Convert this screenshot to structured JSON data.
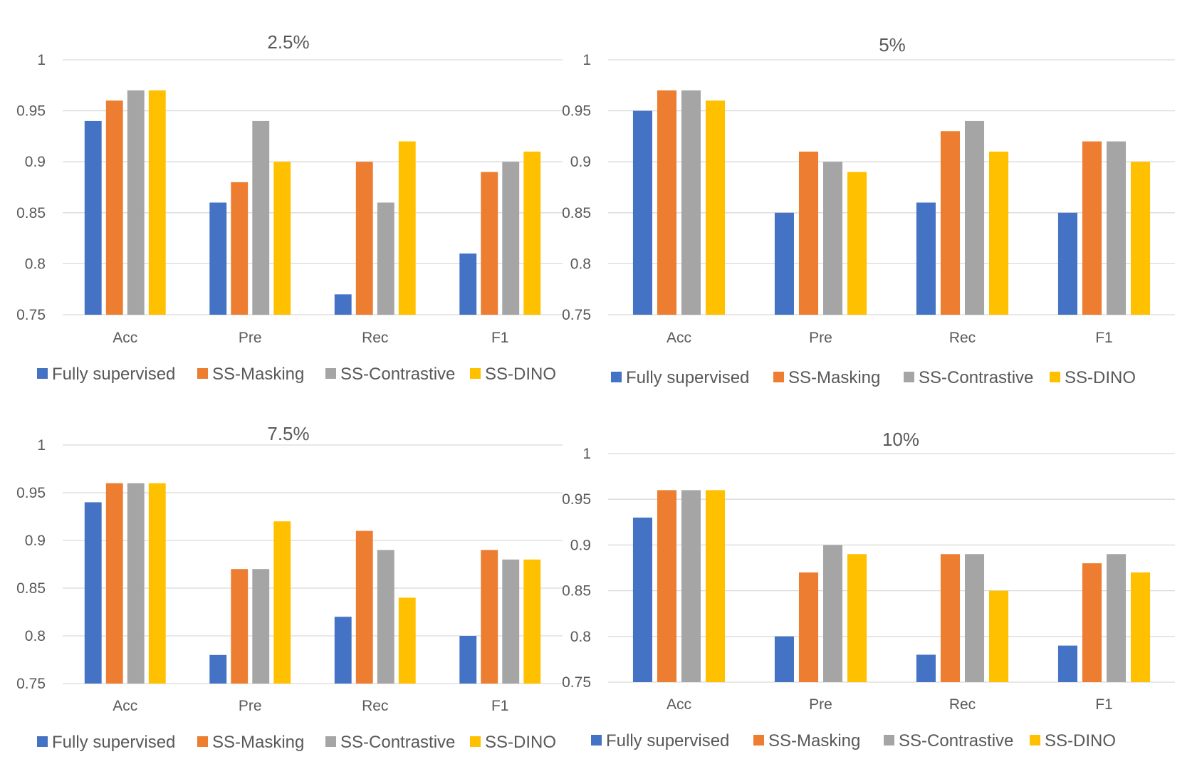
{
  "chart_data": [
    {
      "type": "bar",
      "title": "2.5%",
      "categories": [
        "Acc",
        "Pre",
        "Rec",
        "F1"
      ],
      "ylim": [
        0.75,
        1
      ],
      "yticks": [
        "0.75",
        "0.8",
        "0.85",
        "0.9",
        "0.95",
        "1"
      ],
      "ytick_values": [
        0.75,
        0.8,
        0.85,
        0.9,
        0.95,
        1
      ],
      "grid": true,
      "legend": "bottom",
      "series": [
        {
          "name": "Fully supervised",
          "color": "#4472c4",
          "values": [
            0.94,
            0.86,
            0.77,
            0.81
          ]
        },
        {
          "name": "SS-Masking",
          "color": "#ed7d31",
          "values": [
            0.96,
            0.88,
            0.9,
            0.89
          ]
        },
        {
          "name": "SS-Contrastive",
          "color": "#a5a5a5",
          "values": [
            0.97,
            0.94,
            0.86,
            0.9
          ]
        },
        {
          "name": "SS-DINO",
          "color": "#ffc000",
          "values": [
            0.97,
            0.9,
            0.92,
            0.91
          ]
        }
      ]
    },
    {
      "type": "bar",
      "title": "5%",
      "categories": [
        "Acc",
        "Pre",
        "Rec",
        "F1"
      ],
      "ylim": [
        0.75,
        1
      ],
      "yticks": [
        "0.75",
        "0.8",
        "0.85",
        "0.9",
        "0.95",
        "1"
      ],
      "ytick_values": [
        0.75,
        0.8,
        0.85,
        0.9,
        0.95,
        1
      ],
      "grid": true,
      "legend": "bottom",
      "series": [
        {
          "name": "Fully supervised",
          "color": "#4472c4",
          "values": [
            0.95,
            0.85,
            0.86,
            0.85
          ]
        },
        {
          "name": "SS-Masking",
          "color": "#ed7d31",
          "values": [
            0.97,
            0.91,
            0.93,
            0.92
          ]
        },
        {
          "name": "SS-Contrastive",
          "color": "#a5a5a5",
          "values": [
            0.97,
            0.9,
            0.94,
            0.92
          ]
        },
        {
          "name": "SS-DINO",
          "color": "#ffc000",
          "values": [
            0.96,
            0.89,
            0.91,
            0.9
          ]
        }
      ]
    },
    {
      "type": "bar",
      "title": "7.5%",
      "categories": [
        "Acc",
        "Pre",
        "Rec",
        "F1"
      ],
      "ylim": [
        0.75,
        1
      ],
      "yticks": [
        "0.75",
        "0.8",
        "0.85",
        "0.9",
        "0.95",
        "1"
      ],
      "ytick_values": [
        0.75,
        0.8,
        0.85,
        0.9,
        0.95,
        1
      ],
      "grid": true,
      "legend": "bottom",
      "series": [
        {
          "name": "Fully supervised",
          "color": "#4472c4",
          "values": [
            0.94,
            0.78,
            0.82,
            0.8
          ]
        },
        {
          "name": "SS-Masking",
          "color": "#ed7d31",
          "values": [
            0.96,
            0.87,
            0.91,
            0.89
          ]
        },
        {
          "name": "SS-Contrastive",
          "color": "#a5a5a5",
          "values": [
            0.96,
            0.87,
            0.89,
            0.88
          ]
        },
        {
          "name": "SS-DINO",
          "color": "#ffc000",
          "values": [
            0.96,
            0.92,
            0.84,
            0.88
          ]
        }
      ]
    },
    {
      "type": "bar",
      "title": "10%",
      "categories": [
        "Acc",
        "Pre",
        "Rec",
        "F1"
      ],
      "ylim": [
        0.75,
        1
      ],
      "yticks": [
        "0.75",
        "0.8",
        "0.85",
        "0.9",
        "0.95",
        "1"
      ],
      "ytick_values": [
        0.75,
        0.8,
        0.85,
        0.9,
        0.95,
        1
      ],
      "grid": true,
      "legend": "bottom",
      "series": [
        {
          "name": "Fully supervised",
          "color": "#4472c4",
          "values": [
            0.93,
            0.8,
            0.78,
            0.79
          ]
        },
        {
          "name": "SS-Masking",
          "color": "#ed7d31",
          "values": [
            0.96,
            0.87,
            0.89,
            0.88
          ]
        },
        {
          "name": "SS-Contrastive",
          "color": "#a5a5a5",
          "values": [
            0.96,
            0.9,
            0.89,
            0.89
          ]
        },
        {
          "name": "SS-DINO",
          "color": "#ffc000",
          "values": [
            0.96,
            0.89,
            0.85,
            0.87
          ]
        }
      ]
    }
  ]
}
